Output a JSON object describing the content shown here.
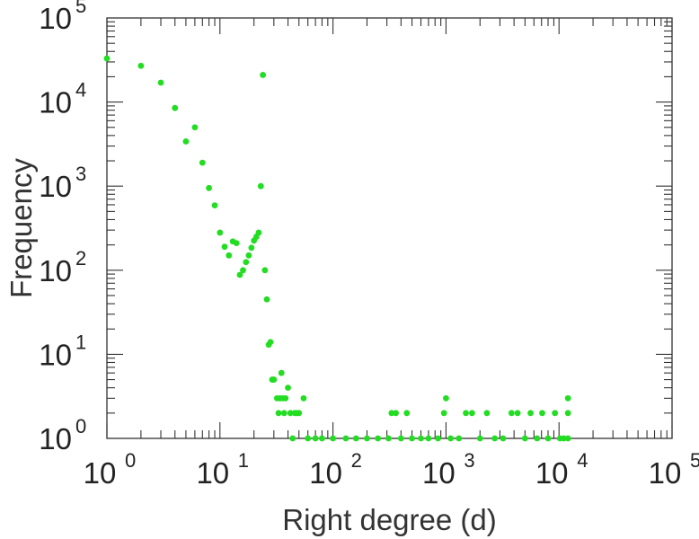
{
  "chart_data": {
    "type": "scatter",
    "title": "",
    "xlabel": "Right degree (d)",
    "ylabel": "Frequency",
    "x_scale": "log",
    "y_scale": "log",
    "xlim": [
      1,
      100000
    ],
    "ylim": [
      1,
      100000
    ],
    "grid": false,
    "marker_color": "#22dd22",
    "x_ticks": [
      {
        "base": "10",
        "exp": "0"
      },
      {
        "base": "10",
        "exp": "1"
      },
      {
        "base": "10",
        "exp": "2"
      },
      {
        "base": "10",
        "exp": "3"
      },
      {
        "base": "10",
        "exp": "4"
      },
      {
        "base": "10",
        "exp": "5"
      }
    ],
    "y_ticks": [
      {
        "base": "10",
        "exp": "0"
      },
      {
        "base": "10",
        "exp": "1"
      },
      {
        "base": "10",
        "exp": "2"
      },
      {
        "base": "10",
        "exp": "3"
      },
      {
        "base": "10",
        "exp": "4"
      },
      {
        "base": "10",
        "exp": "5"
      }
    ],
    "series": [
      {
        "points": [
          [
            1,
            33000
          ],
          [
            2,
            27000
          ],
          [
            3,
            17000
          ],
          [
            4,
            8500
          ],
          [
            5,
            3400
          ],
          [
            6,
            5000
          ],
          [
            7,
            1900
          ],
          [
            8,
            950
          ],
          [
            9,
            590
          ],
          [
            10,
            280
          ],
          [
            11,
            190
          ],
          [
            12,
            150
          ],
          [
            13,
            220
          ],
          [
            14,
            210
          ],
          [
            15,
            88
          ],
          [
            16,
            100
          ],
          [
            17,
            125
          ],
          [
            18,
            150
          ],
          [
            19,
            185
          ],
          [
            20,
            225
          ],
          [
            21,
            250
          ],
          [
            22,
            280
          ],
          [
            23,
            1000
          ],
          [
            24,
            21000
          ],
          [
            25,
            100
          ],
          [
            26,
            45
          ],
          [
            27,
            13
          ],
          [
            28,
            14
          ],
          [
            29,
            5
          ],
          [
            30,
            5
          ],
          [
            32,
            3
          ],
          [
            33,
            2
          ],
          [
            34,
            3
          ],
          [
            35,
            6
          ],
          [
            36,
            3
          ],
          [
            37,
            2
          ],
          [
            38,
            3
          ],
          [
            40,
            4
          ],
          [
            42,
            2
          ],
          [
            44,
            1
          ],
          [
            46,
            2
          ],
          [
            48,
            2
          ],
          [
            50,
            2
          ],
          [
            55,
            3
          ],
          [
            60,
            1
          ],
          [
            70,
            1
          ],
          [
            80,
            1
          ],
          [
            100,
            1
          ],
          [
            130,
            1
          ],
          [
            160,
            1
          ],
          [
            200,
            1
          ],
          [
            250,
            1
          ],
          [
            310,
            1
          ],
          [
            330,
            2
          ],
          [
            360,
            2
          ],
          [
            400,
            1
          ],
          [
            450,
            2
          ],
          [
            500,
            1
          ],
          [
            600,
            1
          ],
          [
            700,
            1
          ],
          [
            850,
            1
          ],
          [
            960,
            2
          ],
          [
            1000,
            3
          ],
          [
            1100,
            1
          ],
          [
            1300,
            1
          ],
          [
            1500,
            2
          ],
          [
            1700,
            2
          ],
          [
            2000,
            1
          ],
          [
            2300,
            2
          ],
          [
            2700,
            1
          ],
          [
            3200,
            1
          ],
          [
            3800,
            2
          ],
          [
            4300,
            2
          ],
          [
            5000,
            1
          ],
          [
            5600,
            2
          ],
          [
            6400,
            1
          ],
          [
            7100,
            2
          ],
          [
            8000,
            1
          ],
          [
            9200,
            2
          ],
          [
            10200,
            1
          ],
          [
            11000,
            1
          ],
          [
            12000,
            3
          ],
          [
            12000,
            2
          ],
          [
            12000,
            1
          ]
        ]
      }
    ]
  }
}
